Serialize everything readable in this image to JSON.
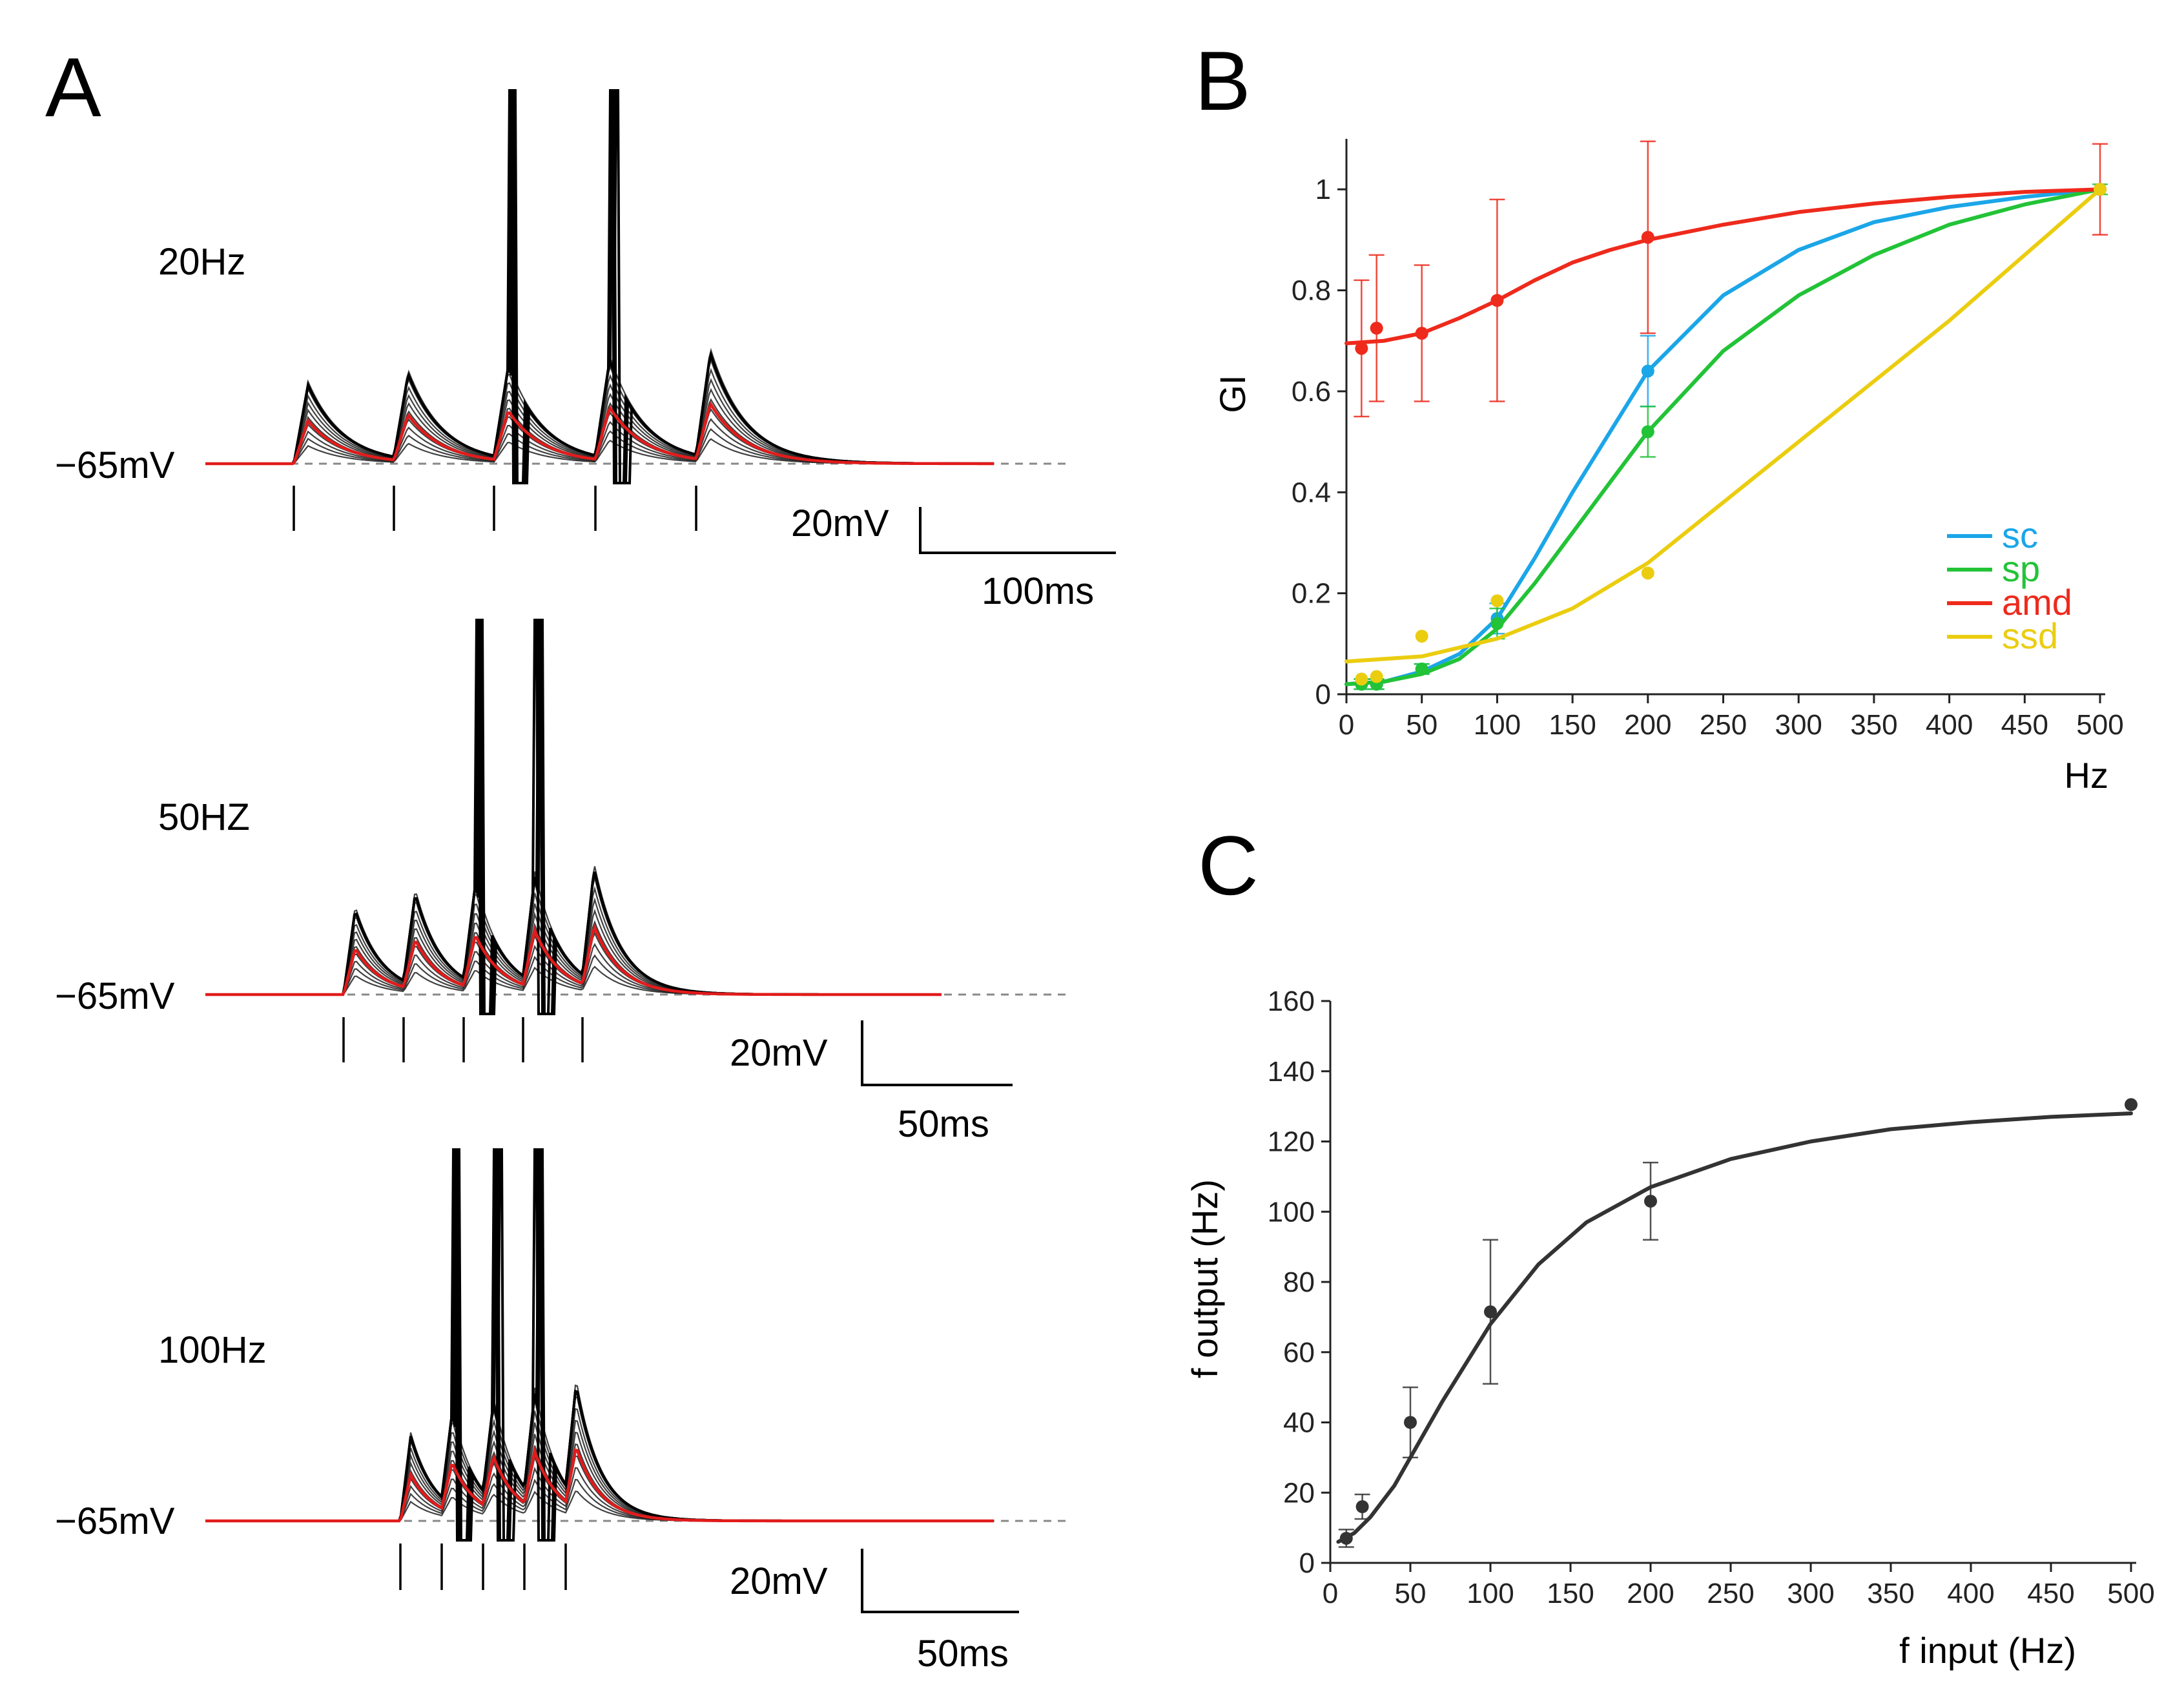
{
  "panels": {
    "A": {
      "letter": "A",
      "sub": [
        {
          "rate_label": "20Hz",
          "baseline_label": "−65mV",
          "v_scale": "20mV",
          "t_scale": "100ms",
          "spike_count": 2
        },
        {
          "rate_label": "50HZ",
          "baseline_label": "−65mV",
          "v_scale": "20mV",
          "t_scale": "50ms",
          "spike_count": 2
        },
        {
          "rate_label": "100Hz",
          "baseline_label": "−65mV",
          "v_scale": "20mV",
          "t_scale": "50ms",
          "spike_count": 3
        }
      ]
    },
    "B": {
      "letter": "B"
    },
    "C": {
      "letter": "C"
    }
  },
  "chart_data": [
    {
      "id": "B",
      "type": "line",
      "title": "",
      "xlabel": "Hz",
      "ylabel": "GI",
      "xlim": [
        0,
        500
      ],
      "ylim": [
        0,
        1.1
      ],
      "xticks": [
        0,
        50,
        100,
        150,
        200,
        250,
        300,
        350,
        400,
        450,
        500
      ],
      "yticks": [
        0,
        0.2,
        0.4,
        0.6,
        0.8,
        1
      ],
      "ytick_labels": [
        "0",
        "0.2",
        "0.4",
        "0.6",
        "0.8",
        "1"
      ],
      "legend": "bottom-right",
      "series": [
        {
          "name": "sc",
          "color": "#1ba6e8",
          "points": [
            [
              10,
              0.02
            ],
            [
              20,
              0.02
            ],
            [
              50,
              0.05
            ],
            [
              100,
              0.15
            ],
            [
              200,
              0.64
            ],
            [
              500,
              1.0
            ]
          ],
          "err": [
            0.01,
            0.01,
            0.01,
            0.03,
            0.07,
            0
          ],
          "curve": [
            [
              0,
              0.02
            ],
            [
              25,
              0.025
            ],
            [
              50,
              0.045
            ],
            [
              75,
              0.08
            ],
            [
              100,
              0.15
            ],
            [
              125,
              0.27
            ],
            [
              150,
              0.4
            ],
            [
              175,
              0.52
            ],
            [
              200,
              0.64
            ],
            [
              250,
              0.79
            ],
            [
              300,
              0.88
            ],
            [
              350,
              0.935
            ],
            [
              400,
              0.965
            ],
            [
              450,
              0.985
            ],
            [
              500,
              1.0
            ]
          ]
        },
        {
          "name": "sp",
          "color": "#22c337",
          "points": [
            [
              10,
              0.02
            ],
            [
              20,
              0.02
            ],
            [
              50,
              0.05
            ],
            [
              100,
              0.14
            ],
            [
              200,
              0.52
            ],
            [
              500,
              1.0
            ]
          ],
          "err": [
            0.01,
            0.01,
            0.01,
            0.03,
            0.05,
            0.01
          ],
          "curve": [
            [
              0,
              0.02
            ],
            [
              25,
              0.025
            ],
            [
              50,
              0.04
            ],
            [
              75,
              0.07
            ],
            [
              100,
              0.13
            ],
            [
              125,
              0.22
            ],
            [
              150,
              0.32
            ],
            [
              175,
              0.42
            ],
            [
              200,
              0.52
            ],
            [
              250,
              0.68
            ],
            [
              300,
              0.79
            ],
            [
              350,
              0.87
            ],
            [
              400,
              0.93
            ],
            [
              450,
              0.97
            ],
            [
              500,
              1.0
            ]
          ]
        },
        {
          "name": "amd",
          "color": "#ee2a1c",
          "points": [
            [
              10,
              0.685
            ],
            [
              20,
              0.725
            ],
            [
              50,
              0.715
            ],
            [
              100,
              0.78
            ],
            [
              200,
              0.905
            ],
            [
              500,
              1.0
            ]
          ],
          "err": [
            0.135,
            0.145,
            0.135,
            0.2,
            0.19,
            0.09
          ],
          "curve": [
            [
              0,
              0.695
            ],
            [
              25,
              0.7
            ],
            [
              50,
              0.715
            ],
            [
              75,
              0.745
            ],
            [
              100,
              0.78
            ],
            [
              125,
              0.82
            ],
            [
              150,
              0.855
            ],
            [
              175,
              0.88
            ],
            [
              200,
              0.9
            ],
            [
              250,
              0.93
            ],
            [
              300,
              0.955
            ],
            [
              350,
              0.972
            ],
            [
              400,
              0.985
            ],
            [
              450,
              0.995
            ],
            [
              500,
              1.0
            ]
          ]
        },
        {
          "name": "ssd",
          "color": "#ebcd10",
          "points": [
            [
              10,
              0.03
            ],
            [
              20,
              0.035
            ],
            [
              50,
              0.115
            ],
            [
              100,
              0.185
            ],
            [
              200,
              0.24
            ],
            [
              500,
              1.0
            ]
          ],
          "err": [
            0,
            0,
            0,
            0,
            0,
            0
          ],
          "curve": [
            [
              0,
              0.065
            ],
            [
              50,
              0.075
            ],
            [
              100,
              0.11
            ],
            [
              150,
              0.17
            ],
            [
              200,
              0.26
            ],
            [
              250,
              0.38
            ],
            [
              300,
              0.5
            ],
            [
              350,
              0.62
            ],
            [
              400,
              0.74
            ],
            [
              450,
              0.87
            ],
            [
              500,
              1.0
            ]
          ]
        }
      ]
    },
    {
      "id": "C",
      "type": "line",
      "title": "",
      "xlabel": "f input (Hz)",
      "ylabel": "f output (Hz)",
      "xlim": [
        0,
        500
      ],
      "ylim": [
        0,
        160
      ],
      "xticks": [
        0,
        50,
        100,
        150,
        200,
        250,
        300,
        350,
        400,
        450,
        500
      ],
      "yticks": [
        0,
        20,
        40,
        60,
        80,
        100,
        120,
        140,
        160
      ],
      "series": [
        {
          "name": "f output",
          "color": "#333333",
          "points": [
            [
              10,
              7
            ],
            [
              20,
              16
            ],
            [
              50,
              40
            ],
            [
              100,
              71.5
            ],
            [
              200,
              103
            ],
            [
              500,
              130.5
            ]
          ],
          "err": [
            2.5,
            3.5,
            10,
            20.5,
            11,
            0
          ],
          "curve": [
            [
              5,
              6
            ],
            [
              15,
              8.5
            ],
            [
              25,
              13
            ],
            [
              40,
              22
            ],
            [
              50,
              30
            ],
            [
              70,
              46
            ],
            [
              100,
              68
            ],
            [
              130,
              85
            ],
            [
              160,
              97
            ],
            [
              200,
              107
            ],
            [
              250,
              115
            ],
            [
              300,
              120
            ],
            [
              350,
              123.5
            ],
            [
              400,
              125.5
            ],
            [
              450,
              127
            ],
            [
              500,
              128
            ]
          ]
        }
      ]
    }
  ]
}
